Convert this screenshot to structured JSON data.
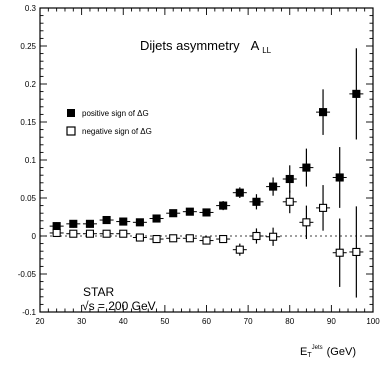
{
  "chart_data": {
    "type": "scatter",
    "title": "Dijets asymmetry",
    "title_symbol": "A",
    "title_symbol_sub": "LL",
    "xlabel": "E",
    "xlabel_sub": "T",
    "xlabel_sup": "Jets",
    "xlabel_unit": "(GeV)",
    "xlim": [
      20,
      100
    ],
    "ylim": [
      -0.1,
      0.3
    ],
    "x_ticks": [
      "20",
      "30",
      "40",
      "50",
      "60",
      "70",
      "80",
      "90",
      "100"
    ],
    "y_ticks": [
      "-0.1",
      "-0.05",
      "0",
      "0.05",
      "0.1",
      "0.15",
      "0.2",
      "0.25",
      "0.3"
    ],
    "grid": false,
    "legend_position": "top-left",
    "annotation_experiment": "STAR",
    "annotation_energy": "√s = 200 GeV",
    "series": [
      {
        "name": "positive sign of ΔG",
        "marker": "filled-square",
        "points": [
          {
            "x": 24,
            "y": 0.013,
            "err": 0.005
          },
          {
            "x": 28,
            "y": 0.016,
            "err": 0.005
          },
          {
            "x": 32,
            "y": 0.016,
            "err": 0.005
          },
          {
            "x": 36,
            "y": 0.021,
            "err": 0.004
          },
          {
            "x": 40,
            "y": 0.019,
            "err": 0.004
          },
          {
            "x": 44,
            "y": 0.018,
            "err": 0.004
          },
          {
            "x": 48,
            "y": 0.023,
            "err": 0.004
          },
          {
            "x": 52,
            "y": 0.03,
            "err": 0.004
          },
          {
            "x": 56,
            "y": 0.032,
            "err": 0.004
          },
          {
            "x": 60,
            "y": 0.031,
            "err": 0.004
          },
          {
            "x": 64,
            "y": 0.04,
            "err": 0.006
          },
          {
            "x": 68,
            "y": 0.057,
            "err": 0.007
          },
          {
            "x": 72,
            "y": 0.045,
            "err": 0.01
          },
          {
            "x": 76,
            "y": 0.065,
            "err": 0.012
          },
          {
            "x": 80,
            "y": 0.075,
            "err": 0.018
          },
          {
            "x": 84,
            "y": 0.09,
            "err": 0.025
          },
          {
            "x": 88,
            "y": 0.163,
            "err": 0.03
          },
          {
            "x": 92,
            "y": 0.077,
            "err": 0.04
          },
          {
            "x": 96,
            "y": 0.187,
            "err": 0.06
          }
        ]
      },
      {
        "name": "negative sign of ΔG",
        "marker": "open-square",
        "points": [
          {
            "x": 24,
            "y": 0.004,
            "err": 0.004
          },
          {
            "x": 28,
            "y": 0.003,
            "err": 0.004
          },
          {
            "x": 32,
            "y": 0.003,
            "err": 0.004
          },
          {
            "x": 36,
            "y": 0.003,
            "err": 0.004
          },
          {
            "x": 40,
            "y": 0.003,
            "err": 0.004
          },
          {
            "x": 44,
            "y": -0.002,
            "err": 0.004
          },
          {
            "x": 48,
            "y": -0.004,
            "err": 0.004
          },
          {
            "x": 52,
            "y": -0.003,
            "err": 0.004
          },
          {
            "x": 56,
            "y": -0.003,
            "err": 0.004
          },
          {
            "x": 60,
            "y": -0.006,
            "err": 0.005
          },
          {
            "x": 64,
            "y": -0.004,
            "err": 0.005
          },
          {
            "x": 68,
            "y": -0.018,
            "err": 0.008
          },
          {
            "x": 72,
            "y": 0.0,
            "err": 0.01
          },
          {
            "x": 76,
            "y": -0.001,
            "err": 0.012
          },
          {
            "x": 80,
            "y": 0.045,
            "err": 0.015
          },
          {
            "x": 84,
            "y": 0.018,
            "err": 0.022
          },
          {
            "x": 88,
            "y": 0.037,
            "err": 0.03
          },
          {
            "x": 92,
            "y": -0.022,
            "err": 0.045
          },
          {
            "x": 96,
            "y": -0.021,
            "err": 0.06
          }
        ]
      }
    ]
  }
}
